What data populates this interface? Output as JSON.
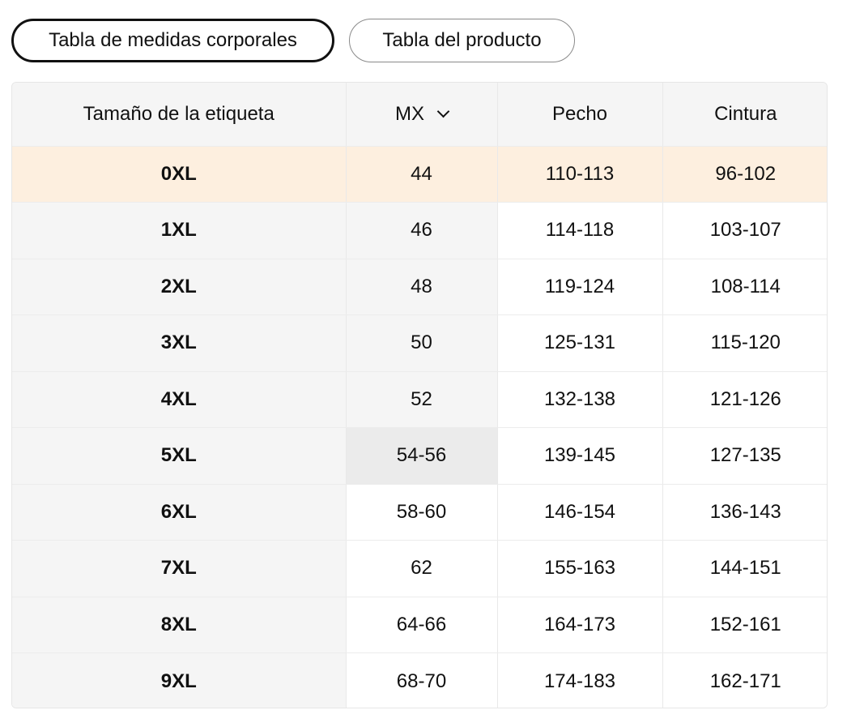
{
  "tabs": {
    "body_chart_label": "Tabla de medidas corporales",
    "product_chart_label": "Tabla del producto"
  },
  "table": {
    "headers": {
      "size": "Tamaño de la etiqueta",
      "mx": "MX",
      "chest": "Pecho",
      "waist": "Cintura"
    },
    "rows": [
      {
        "size": "0XL",
        "mx": "44",
        "chest": "110-113",
        "waist": "96-102"
      },
      {
        "size": "1XL",
        "mx": "46",
        "chest": "114-118",
        "waist": "103-107"
      },
      {
        "size": "2XL",
        "mx": "48",
        "chest": "119-124",
        "waist": "108-114"
      },
      {
        "size": "3XL",
        "mx": "50",
        "chest": "125-131",
        "waist": "115-120"
      },
      {
        "size": "4XL",
        "mx": "52",
        "chest": "132-138",
        "waist": "121-126"
      },
      {
        "size": "5XL",
        "mx": "54-56",
        "chest": "139-145",
        "waist": "127-135"
      },
      {
        "size": "6XL",
        "mx": "58-60",
        "chest": "146-154",
        "waist": "136-143"
      },
      {
        "size": "7XL",
        "mx": "62",
        "chest": "155-163",
        "waist": "144-151"
      },
      {
        "size": "8XL",
        "mx": "64-66",
        "chest": "164-173",
        "waist": "152-161"
      },
      {
        "size": "9XL",
        "mx": "68-70",
        "chest": "174-183",
        "waist": "162-171"
      }
    ]
  },
  "colors": {
    "highlight_row": "#fdefdf",
    "shaded_cell": "#f5f5f5",
    "border": "#e9e9e9"
  },
  "icons": {
    "mx_dropdown": "chevron-down-icon"
  }
}
